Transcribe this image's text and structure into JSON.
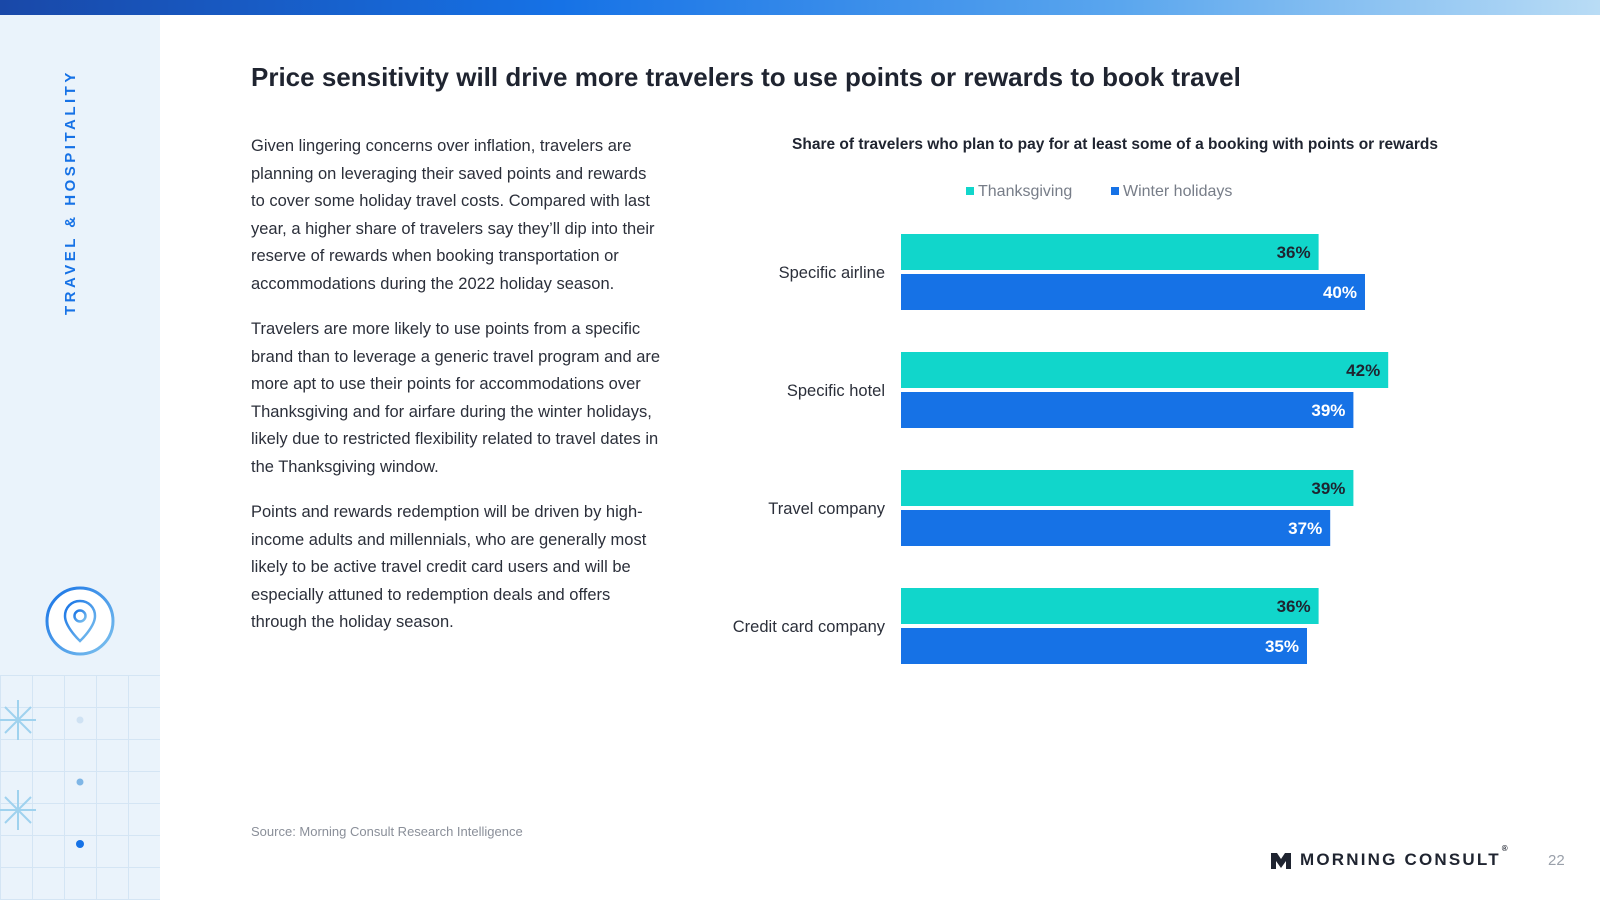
{
  "sidebar": {
    "section_label": "TRAVEL & HOSPITALITY"
  },
  "slide": {
    "title": "Price sensitivity will drive more travelers to use points or rewards to book travel",
    "paragraphs": [
      "Given lingering concerns over inflation, travelers are planning on leveraging their saved points and rewards to cover some holiday travel costs. Compared with last year, a higher share of travelers say they’ll dip into their reserve of rewards when booking transportation or accommodations during the 2022 holiday season.",
      "Travelers are more likely to use points from a specific brand than to leverage a generic travel program and are more apt to use their points for accommodations over Thanksgiving and for airfare during the winter holidays, likely due to restricted flexibility related to travel dates in the Thanksgiving window.",
      "Points and rewards redemption will be driven by high-income adults and millennials, who are generally most likely to be active travel credit card users and will be especially attuned to redemption deals and offers through the holiday season."
    ],
    "source": "Source: Morning Consult Research Intelligence",
    "page_number": "22"
  },
  "brand": {
    "name": "MORNING CONSULT",
    "registered_mark": "®"
  },
  "colors": {
    "thanksgiving": "#11d6cb",
    "winter_holidays": "#1672e6",
    "accent_blue": "#1672e6"
  },
  "chart_data": {
    "type": "bar",
    "orientation": "horizontal",
    "title": "Share of travelers who plan to pay for at least some of a booking with points or rewards",
    "categories": [
      "Specific airline",
      "Specific hotel",
      "Travel company",
      "Credit card company"
    ],
    "series": [
      {
        "name": "Thanksgiving",
        "values": [
          36,
          42,
          39,
          36
        ],
        "labels": [
          "36%",
          "42%",
          "39%",
          "36%"
        ]
      },
      {
        "name": "Winter holidays",
        "values": [
          40,
          39,
          37,
          35
        ],
        "labels": [
          "40%",
          "39%",
          "37%",
          "35%"
        ]
      }
    ],
    "xlim": [
      0,
      50
    ],
    "legend_position": "top-center",
    "grid": false,
    "xlabel": "",
    "ylabel": ""
  }
}
